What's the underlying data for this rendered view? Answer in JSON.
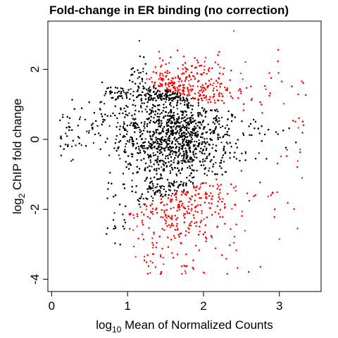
{
  "chart_data": {
    "type": "scatter",
    "title": "Fold-change in ER binding (no correction)",
    "xlabel": {
      "prefix": "log",
      "subscript": "10",
      "rest": " Mean of Normalized Counts"
    },
    "ylabel": {
      "prefix": "log",
      "subscript": "2",
      "rest": " ChIP fold change"
    },
    "xlim": [
      -0.05,
      3.55
    ],
    "ylim": [
      -4.35,
      3.38
    ],
    "x_ticks": [
      0,
      1,
      2,
      3
    ],
    "x_tick_labels": [
      "0",
      "1",
      "2",
      "3"
    ],
    "y_ticks": [
      -4,
      -2,
      0,
      2
    ],
    "y_tick_labels": [
      "-4",
      "-2",
      "0",
      "2"
    ],
    "grid": false,
    "legend": "none",
    "series": [
      {
        "color": "#000000",
        "role": "not significant",
        "points": []
      },
      {
        "color": "#ff0000",
        "role": "significant",
        "points": []
      }
    ],
    "representative_points": {
      "black_cloud_outline": [
        [
          0.15,
          0.8
        ],
        [
          0.5,
          1.1
        ],
        [
          1.0,
          0.9
        ],
        [
          1.3,
          1.7
        ],
        [
          1.7,
          1.4
        ],
        [
          2.2,
          0.8
        ],
        [
          2.8,
          0.2
        ],
        [
          3.2,
          -0.4
        ],
        [
          2.3,
          -0.8
        ],
        [
          1.6,
          -1.4
        ],
        [
          1.0,
          -2.0
        ],
        [
          0.85,
          -1.6
        ],
        [
          0.5,
          -0.6
        ],
        [
          0.15,
          0.8
        ]
      ],
      "red_top_center": [
        1.65,
        1.8
      ],
      "red_bottom_center": [
        1.55,
        -2.6
      ],
      "isolated_points": [
        [
          3.1,
          -0.3
        ],
        [
          3.3,
          -1.1
        ],
        [
          3.0,
          -2.85
        ],
        [
          2.0,
          -3.8
        ],
        [
          2.4,
          3.1
        ]
      ]
    }
  }
}
